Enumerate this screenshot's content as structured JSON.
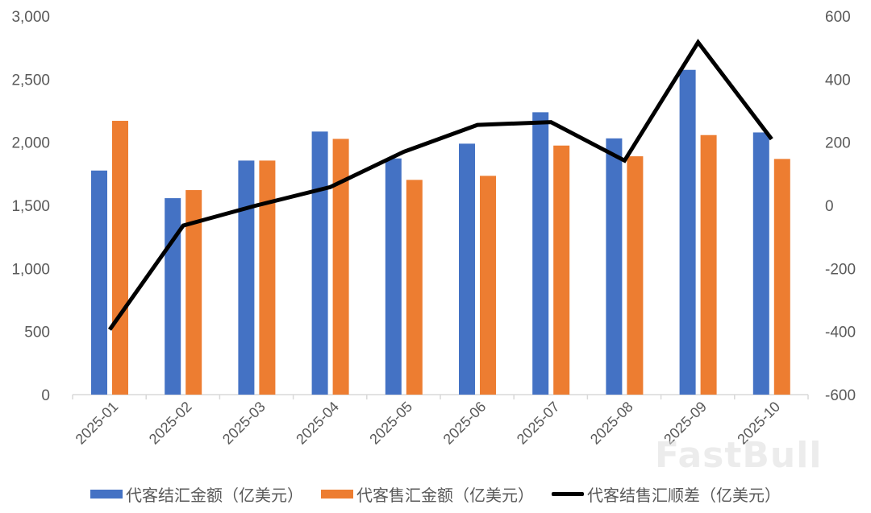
{
  "chart_data": {
    "type": "bar",
    "title": "",
    "categories": [
      "2025-01",
      "2025-02",
      "2025-03",
      "2025-04",
      "2025-05",
      "2025-06",
      "2025-07",
      "2025-08",
      "2025-09",
      "2025-10"
    ],
    "series": [
      {
        "name": "代客结汇金额（亿美元）",
        "type": "bar",
        "axis": "left",
        "color": "#4472C4",
        "values": [
          1776,
          1557,
          1855,
          2085,
          1872,
          1989,
          2238,
          2031,
          2574,
          2078
        ]
      },
      {
        "name": "代客售汇金额（亿美元）",
        "type": "bar",
        "axis": "left",
        "color": "#ED7D31",
        "values": [
          2170,
          1621,
          1855,
          2027,
          1702,
          1734,
          1974,
          1889,
          2057,
          1868
        ]
      },
      {
        "name": "代客结售汇顺差（亿美元）",
        "type": "line",
        "axis": "right",
        "color": "#000000",
        "values": [
          -394,
          -64,
          0,
          58,
          170,
          255,
          264,
          142,
          517,
          210
        ]
      }
    ],
    "xlabel": "",
    "ylabel": "",
    "ylim": [
      0,
      3000
    ],
    "y_ticks": [
      "3,000",
      "2,500",
      "2,000",
      "1,500",
      "1,000",
      "500",
      "0"
    ],
    "y2lim": [
      -600,
      600
    ],
    "y2_ticks": [
      "600",
      "400",
      "200",
      "0",
      "-200",
      "-400",
      "-600"
    ],
    "grid": false,
    "legend_position": "bottom"
  },
  "legend": [
    {
      "label": "代客结汇金额（亿美元）",
      "color": "#4472C4",
      "kind": "bar"
    },
    {
      "label": "代客售汇金额（亿美元）",
      "color": "#ED7D31",
      "kind": "bar"
    },
    {
      "label": "代客结售汇顺差（亿美元）",
      "color": "#000000",
      "kind": "line"
    }
  ],
  "watermark": "FastBull"
}
